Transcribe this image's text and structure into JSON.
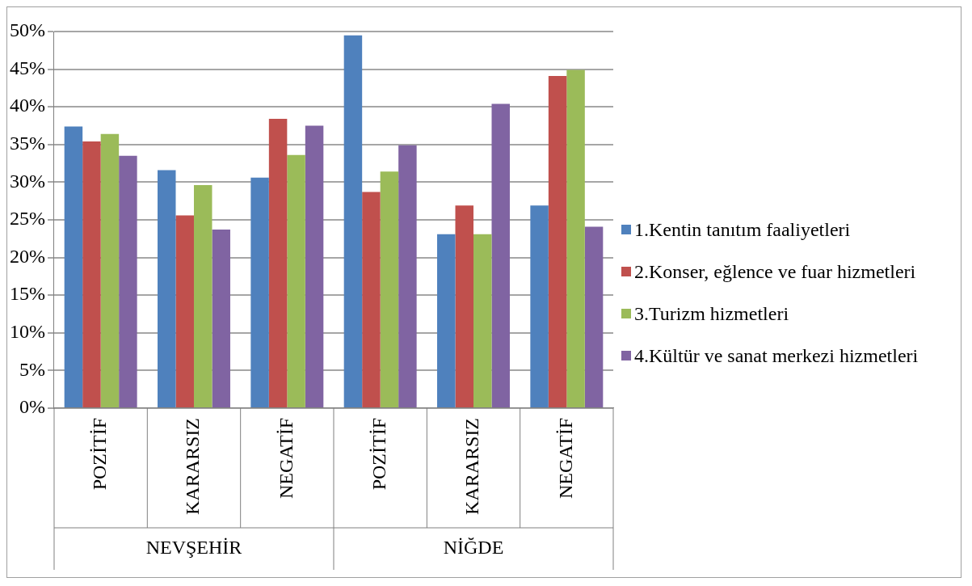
{
  "chart_data": {
    "type": "bar",
    "categories": [
      "POZİTİF",
      "KARARSIZ",
      "NEGATİF",
      "POZİTİF",
      "KARARSIZ",
      "NEGATİF"
    ],
    "annotations": [
      "NEVŞEHİR",
      "NİĞDE"
    ],
    "series": [
      {
        "name": "1.Kentin tanıtım faaliyetleri",
        "color": "#4f81bd",
        "values": [
          37.4,
          31.6,
          30.6,
          49.5,
          23.1,
          26.9
        ]
      },
      {
        "name": "2.Konser, eğlence ve fuar hizmetleri",
        "color": "#c0504d",
        "values": [
          35.4,
          25.6,
          38.4,
          28.7,
          26.9,
          44.1
        ]
      },
      {
        "name": "3.Turizm hizmetleri",
        "color": "#9bbb59",
        "values": [
          36.4,
          29.6,
          33.6,
          31.4,
          23.1,
          44.9
        ]
      },
      {
        "name": "4.Kültür ve sanat merkezi hizmetleri",
        "color": "#8064a2",
        "values": [
          33.5,
          23.7,
          37.5,
          34.9,
          40.4,
          24.1
        ]
      }
    ],
    "ylim": [
      0,
      50
    ],
    "yticks": [
      {
        "value": 0,
        "label": "0%"
      },
      {
        "value": 5,
        "label": "5%"
      },
      {
        "value": 10,
        "label": "10%"
      },
      {
        "value": 15,
        "label": "15%"
      },
      {
        "value": 20,
        "label": "20%"
      },
      {
        "value": 25,
        "label": "25%"
      },
      {
        "value": 30,
        "label": "30%"
      },
      {
        "value": 35,
        "label": "35%"
      },
      {
        "value": 40,
        "label": "40%"
      },
      {
        "value": 45,
        "label": "45%"
      },
      {
        "value": 50,
        "label": "50%"
      }
    ],
    "grid": "y",
    "legend": "right"
  }
}
